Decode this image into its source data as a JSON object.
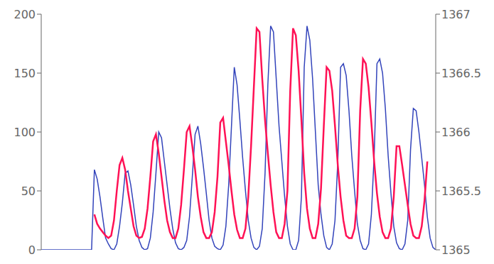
{
  "chart_data": {
    "type": "line",
    "x": [
      0,
      1,
      2,
      3,
      4,
      5,
      6,
      7,
      8,
      9,
      10,
      11,
      12,
      13,
      14,
      15,
      16,
      17,
      18,
      19,
      20,
      21,
      22,
      23,
      24,
      25,
      26,
      27,
      28,
      29,
      30,
      31,
      32,
      33,
      34,
      35,
      36,
      37,
      38,
      39,
      40,
      41,
      42,
      43,
      44,
      45,
      46,
      47,
      48,
      49,
      50,
      51,
      52,
      53,
      54,
      55,
      56,
      57,
      58,
      59,
      60,
      61,
      62,
      63,
      64,
      65,
      66,
      67,
      68,
      69,
      70,
      71,
      72,
      73,
      74,
      75,
      76,
      77,
      78,
      79,
      80,
      81,
      82,
      83,
      84,
      85,
      86,
      87,
      88,
      89,
      90,
      91,
      92,
      93,
      94,
      95,
      96,
      97,
      98,
      99,
      100,
      101,
      102,
      103,
      104,
      105,
      106,
      107,
      108,
      109,
      110,
      111,
      112,
      113,
      114,
      115,
      116,
      117,
      118,
      119,
      120,
      121,
      122,
      123,
      124,
      125,
      126,
      127,
      128,
      129,
      130,
      131,
      132,
      133,
      134,
      135,
      136,
      137,
      138,
      139,
      140,
      141
    ],
    "xlim": [
      0,
      141
    ],
    "ylim": [
      0,
      200
    ],
    "yticks": [
      0,
      50,
      100,
      150,
      200
    ],
    "y2lim": [
      1365.0,
      1367.0
    ],
    "y2ticks": [
      1365,
      1365.5,
      1366,
      1366.5,
      1367
    ],
    "tick_labels": "y",
    "grid": false,
    "series": [
      {
        "color": "#3344bb",
        "axis": "y",
        "values": [
          0,
          0,
          0,
          0,
          0,
          0,
          0,
          0,
          0,
          0,
          0,
          0,
          0,
          0,
          0,
          0,
          0,
          0,
          0,
          68,
          60,
          45,
          27,
          10,
          5,
          1,
          0,
          5,
          20,
          40,
          65,
          67,
          55,
          38,
          20,
          8,
          2,
          0,
          1,
          10,
          32,
          65,
          100,
          95,
          75,
          55,
          35,
          18,
          6,
          1,
          0,
          2,
          8,
          28,
          62,
          98,
          105,
          90,
          70,
          48,
          25,
          10,
          3,
          1,
          0,
          4,
          20,
          55,
          105,
          155,
          140,
          110,
          78,
          50,
          25,
          10,
          2,
          0,
          3,
          18,
          65,
          140,
          190,
          185,
          145,
          105,
          75,
          45,
          20,
          5,
          0,
          0,
          8,
          45,
          155,
          190,
          178,
          145,
          100,
          55,
          30,
          12,
          2,
          0,
          5,
          25,
          75,
          155,
          158,
          148,
          118,
          80,
          50,
          22,
          8,
          1,
          0,
          5,
          30,
          80,
          158,
          162,
          150,
          120,
          80,
          48,
          20,
          6,
          1,
          0,
          5,
          25,
          85,
          120,
          118,
          100,
          78,
          55,
          28,
          10,
          2,
          0
        ]
      },
      {
        "color": "#ff1155",
        "axis": "y2",
        "values": [
          null,
          null,
          null,
          null,
          null,
          null,
          null,
          null,
          null,
          null,
          null,
          null,
          null,
          null,
          null,
          null,
          null,
          null,
          null,
          1365.3,
          1365.22,
          1365.18,
          1365.15,
          1365.12,
          1365.1,
          1365.12,
          1365.25,
          1365.5,
          1365.72,
          1365.78,
          1365.68,
          1365.5,
          1365.35,
          1365.2,
          1365.12,
          1365.1,
          1365.11,
          1365.18,
          1365.35,
          1365.62,
          1365.92,
          1365.98,
          1365.82,
          1365.62,
          1365.42,
          1365.25,
          1365.15,
          1365.1,
          1365.1,
          1365.18,
          1365.38,
          1365.68,
          1366.0,
          1366.05,
          1365.88,
          1365.68,
          1365.45,
          1365.28,
          1365.15,
          1365.1,
          1365.1,
          1365.15,
          1365.32,
          1365.62,
          1366.08,
          1366.12,
          1365.92,
          1365.72,
          1365.5,
          1365.3,
          1365.17,
          1365.1,
          1365.1,
          1365.18,
          1365.45,
          1365.88,
          1366.38,
          1366.88,
          1366.85,
          1366.45,
          1366.1,
          1365.82,
          1365.55,
          1365.32,
          1365.15,
          1365.1,
          1365.1,
          1365.22,
          1365.5,
          1366.35,
          1366.88,
          1366.82,
          1366.52,
          1366.1,
          1365.65,
          1365.35,
          1365.18,
          1365.1,
          1365.1,
          1365.22,
          1365.52,
          1366.05,
          1366.55,
          1366.52,
          1366.35,
          1366.05,
          1365.72,
          1365.45,
          1365.25,
          1365.12,
          1365.1,
          1365.1,
          1365.18,
          1365.45,
          1366.18,
          1366.62,
          1366.58,
          1366.38,
          1366.08,
          1365.75,
          1365.48,
          1365.28,
          1365.15,
          1365.1,
          1365.1,
          1365.18,
          1365.45,
          1365.88,
          1365.88,
          1365.72,
          1365.55,
          1365.38,
          1365.22,
          1365.12,
          1365.1,
          1365.1,
          1365.2,
          1365.42,
          1365.75,
          null,
          null,
          null
        ]
      }
    ]
  }
}
